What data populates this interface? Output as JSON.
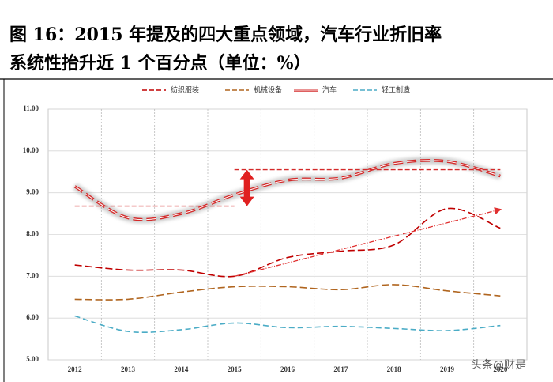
{
  "chart_data": {
    "type": "line",
    "title": [
      "图 16：2015 年提及的四大重点领域，汽车行业折旧率",
      "系统性抬升近 1 个百分点（单位：%）"
    ],
    "categories": [
      "2012",
      "2013",
      "2014",
      "2015",
      "2016",
      "2017",
      "2018",
      "2019",
      "2020"
    ],
    "series": [
      {
        "name": "纺织服装",
        "color": "#c00000",
        "values": [
          7.27,
          7.15,
          7.15,
          7.0,
          7.45,
          7.6,
          7.75,
          8.62,
          8.15
        ]
      },
      {
        "name": "机械设备",
        "color": "#b0651f",
        "values": [
          6.45,
          6.45,
          6.62,
          6.75,
          6.75,
          6.68,
          6.8,
          6.65,
          6.53
        ]
      },
      {
        "name": "汽车",
        "color": "#d42a2a",
        "values": [
          9.15,
          8.4,
          8.5,
          8.95,
          9.3,
          9.35,
          9.7,
          9.75,
          9.4
        ]
      },
      {
        "name": "轻工制造",
        "color": "#4bacc6",
        "values": [
          6.05,
          5.68,
          5.72,
          5.88,
          5.77,
          5.8,
          5.75,
          5.7,
          5.82
        ]
      }
    ],
    "ylim": [
      5,
      11
    ],
    "yticks": [
      {
        "value": 5,
        "label": "5.00"
      },
      {
        "value": 6,
        "label": "6.00"
      },
      {
        "value": 7,
        "label": "7.00"
      },
      {
        "value": 8,
        "label": "8.00"
      },
      {
        "value": 9,
        "label": "9.00"
      },
      {
        "value": 10,
        "label": "10.00"
      },
      {
        "value": 11,
        "label": "11.00"
      }
    ],
    "grid": true,
    "reference_lines": [
      {
        "y": 8.68,
        "x": [
          "2012",
          "2015"
        ]
      },
      {
        "y": 9.55,
        "x": [
          "2015",
          "2020"
        ]
      }
    ],
    "trend_arrow": {
      "x": [
        "2015",
        "2020"
      ],
      "y": [
        7.0,
        8.6
      ]
    },
    "watermark": "头条@财是"
  }
}
